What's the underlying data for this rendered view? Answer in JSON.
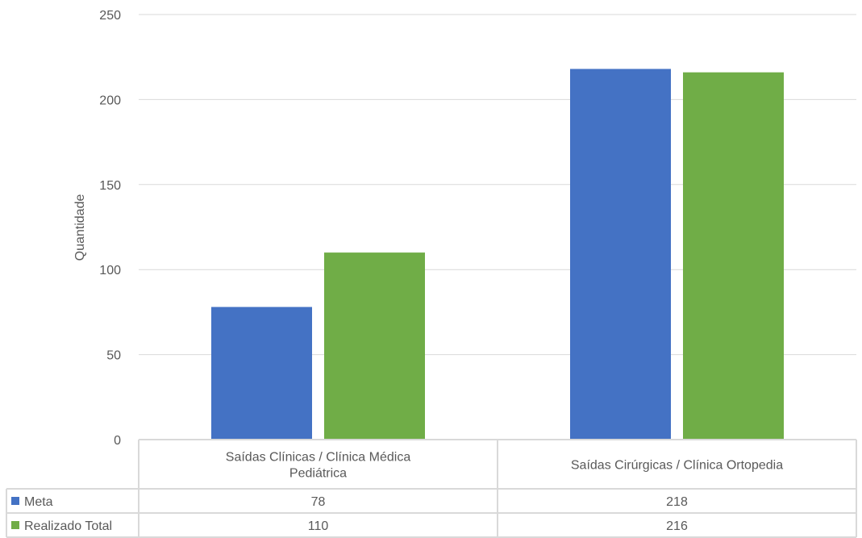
{
  "chart_data": {
    "type": "bar",
    "ylabel": "Quantidade",
    "ylim": [
      0,
      250
    ],
    "yticks": [
      0,
      50,
      100,
      150,
      200,
      250
    ],
    "grid": true,
    "legend": "data-table",
    "categories": [
      [
        "Saídas Clínicas / Clínica Médica",
        "Pediátrica"
      ],
      [
        "Saídas Cirúrgicas / Clínica Ortopedia"
      ]
    ],
    "series": [
      {
        "name": "Meta",
        "color": "#4472C4",
        "values": [
          78,
          218
        ]
      },
      {
        "name": "Realizado Total",
        "color": "#70AD47",
        "values": [
          110,
          216
        ]
      }
    ]
  }
}
